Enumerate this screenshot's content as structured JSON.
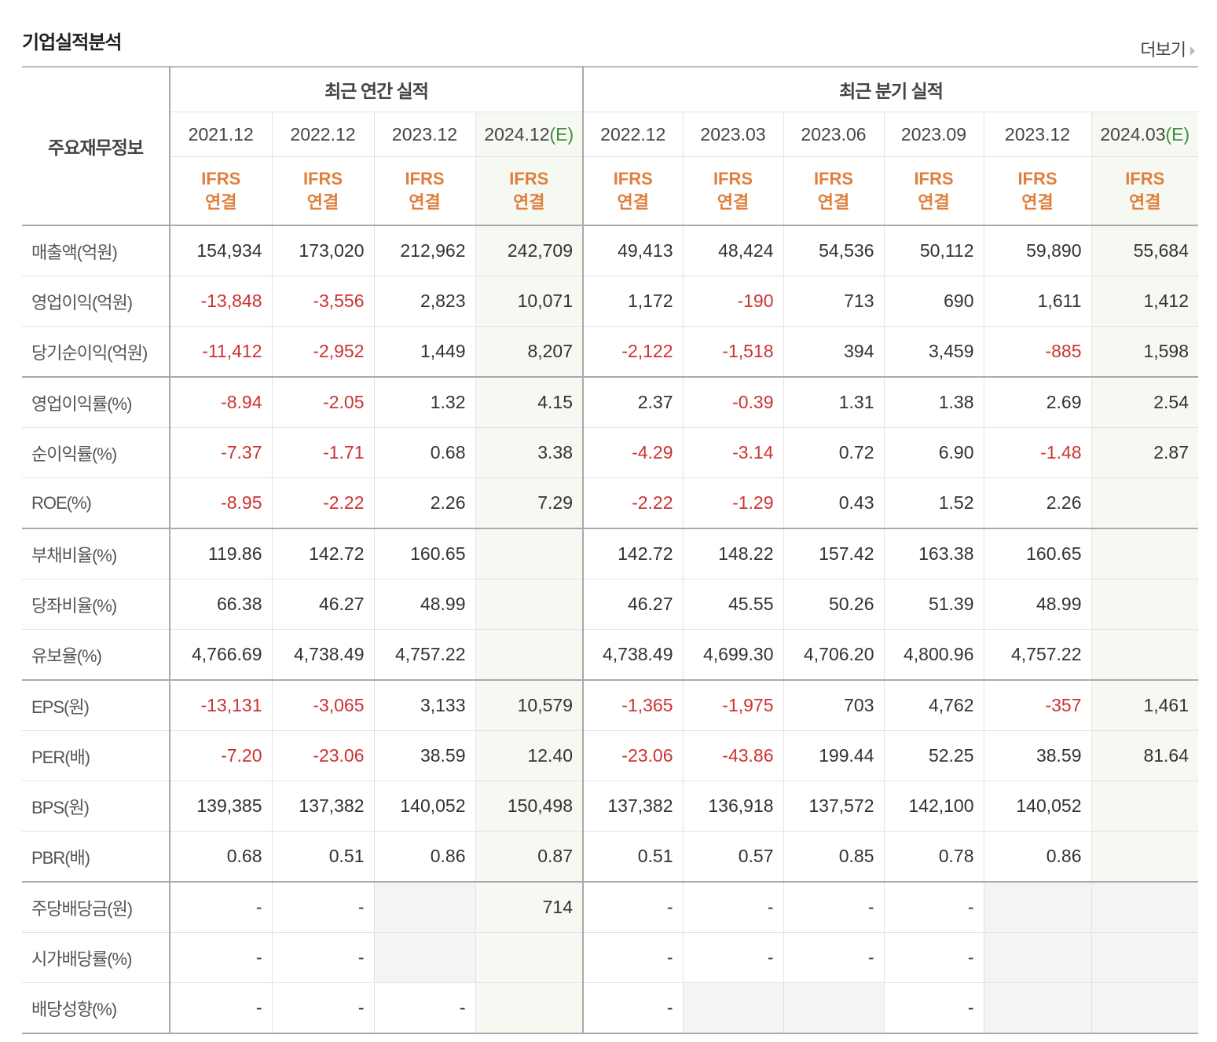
{
  "section_title": "기업실적분석",
  "more_label": "더보기",
  "row_header": "주요재무정보",
  "annual_group": "최근 연간 실적",
  "quarterly_group": "최근 분기 실적",
  "columns": [
    {
      "period": "2021.12",
      "estimate": "",
      "basis": [
        "IFRS",
        "연결"
      ]
    },
    {
      "period": "2022.12",
      "estimate": "",
      "basis": [
        "IFRS",
        "연결"
      ]
    },
    {
      "period": "2023.12",
      "estimate": "",
      "basis": [
        "IFRS",
        "연결"
      ]
    },
    {
      "period": "2024.12",
      "estimate": "(E)",
      "basis": [
        "IFRS",
        "연결"
      ]
    },
    {
      "period": "2022.12",
      "estimate": "",
      "basis": [
        "IFRS",
        "연결"
      ]
    },
    {
      "period": "2023.03",
      "estimate": "",
      "basis": [
        "IFRS",
        "연결"
      ]
    },
    {
      "period": "2023.06",
      "estimate": "",
      "basis": [
        "IFRS",
        "연결"
      ]
    },
    {
      "period": "2023.09",
      "estimate": "",
      "basis": [
        "IFRS",
        "연결"
      ]
    },
    {
      "period": "2023.12",
      "estimate": "",
      "basis": [
        "IFRS",
        "연결"
      ]
    },
    {
      "period": "2024.03",
      "estimate": "(E)",
      "basis": [
        "IFRS",
        "연결"
      ]
    }
  ],
  "rows": [
    {
      "label": "매출액(억원)",
      "values": [
        "154,934",
        "173,020",
        "212,962",
        "242,709",
        "49,413",
        "48,424",
        "54,536",
        "50,112",
        "59,890",
        "55,684"
      ]
    },
    {
      "label": "영업이익(억원)",
      "values": [
        "-13,848",
        "-3,556",
        "2,823",
        "10,071",
        "1,172",
        "-190",
        "713",
        "690",
        "1,611",
        "1,412"
      ]
    },
    {
      "label": "당기순이익(억원)",
      "values": [
        "-11,412",
        "-2,952",
        "1,449",
        "8,207",
        "-2,122",
        "-1,518",
        "394",
        "3,459",
        "-885",
        "1,598"
      ]
    },
    {
      "label": "영업이익률(%)",
      "values": [
        "-8.94",
        "-2.05",
        "1.32",
        "4.15",
        "2.37",
        "-0.39",
        "1.31",
        "1.38",
        "2.69",
        "2.54"
      ]
    },
    {
      "label": "순이익률(%)",
      "values": [
        "-7.37",
        "-1.71",
        "0.68",
        "3.38",
        "-4.29",
        "-3.14",
        "0.72",
        "6.90",
        "-1.48",
        "2.87"
      ]
    },
    {
      "label": "ROE(%)",
      "values": [
        "-8.95",
        "-2.22",
        "2.26",
        "7.29",
        "-2.22",
        "-1.29",
        "0.43",
        "1.52",
        "2.26",
        ""
      ]
    },
    {
      "label": "부채비율(%)",
      "values": [
        "119.86",
        "142.72",
        "160.65",
        "",
        "142.72",
        "148.22",
        "157.42",
        "163.38",
        "160.65",
        ""
      ]
    },
    {
      "label": "당좌비율(%)",
      "values": [
        "66.38",
        "46.27",
        "48.99",
        "",
        "46.27",
        "45.55",
        "50.26",
        "51.39",
        "48.99",
        ""
      ]
    },
    {
      "label": "유보율(%)",
      "values": [
        "4,766.69",
        "4,738.49",
        "4,757.22",
        "",
        "4,738.49",
        "4,699.30",
        "4,706.20",
        "4,800.96",
        "4,757.22",
        ""
      ]
    },
    {
      "label": "EPS(원)",
      "values": [
        "-13,131",
        "-3,065",
        "3,133",
        "10,579",
        "-1,365",
        "-1,975",
        "703",
        "4,762",
        "-357",
        "1,461"
      ]
    },
    {
      "label": "PER(배)",
      "values": [
        "-7.20",
        "-23.06",
        "38.59",
        "12.40",
        "-23.06",
        "-43.86",
        "199.44",
        "52.25",
        "38.59",
        "81.64"
      ]
    },
    {
      "label": "BPS(원)",
      "values": [
        "139,385",
        "137,382",
        "140,052",
        "150,498",
        "137,382",
        "136,918",
        "137,572",
        "142,100",
        "140,052",
        ""
      ]
    },
    {
      "label": "PBR(배)",
      "values": [
        "0.68",
        "0.51",
        "0.86",
        "0.87",
        "0.51",
        "0.57",
        "0.85",
        "0.78",
        "0.86",
        ""
      ]
    },
    {
      "label": "주당배당금(원)",
      "values": [
        "-",
        "-",
        "",
        "714",
        "-",
        "-",
        "-",
        "-",
        "",
        ""
      ]
    },
    {
      "label": "시가배당률(%)",
      "values": [
        "-",
        "-",
        "",
        "",
        "-",
        "-",
        "-",
        "-",
        "",
        ""
      ]
    },
    {
      "label": "배당성향(%)",
      "values": [
        "-",
        "-",
        "-",
        "",
        "-",
        "",
        "",
        "-",
        "",
        ""
      ]
    }
  ],
  "na_cells": {
    "13": [
      2,
      8,
      9
    ],
    "14": [
      2,
      8,
      9
    ],
    "15": [
      5,
      6,
      8,
      9
    ]
  },
  "colors": {
    "negative": "#cc3333",
    "basis": "#e07f3c",
    "estimate_tag": "#3e8e3e",
    "estimate_bg": "#f5f9f1"
  }
}
